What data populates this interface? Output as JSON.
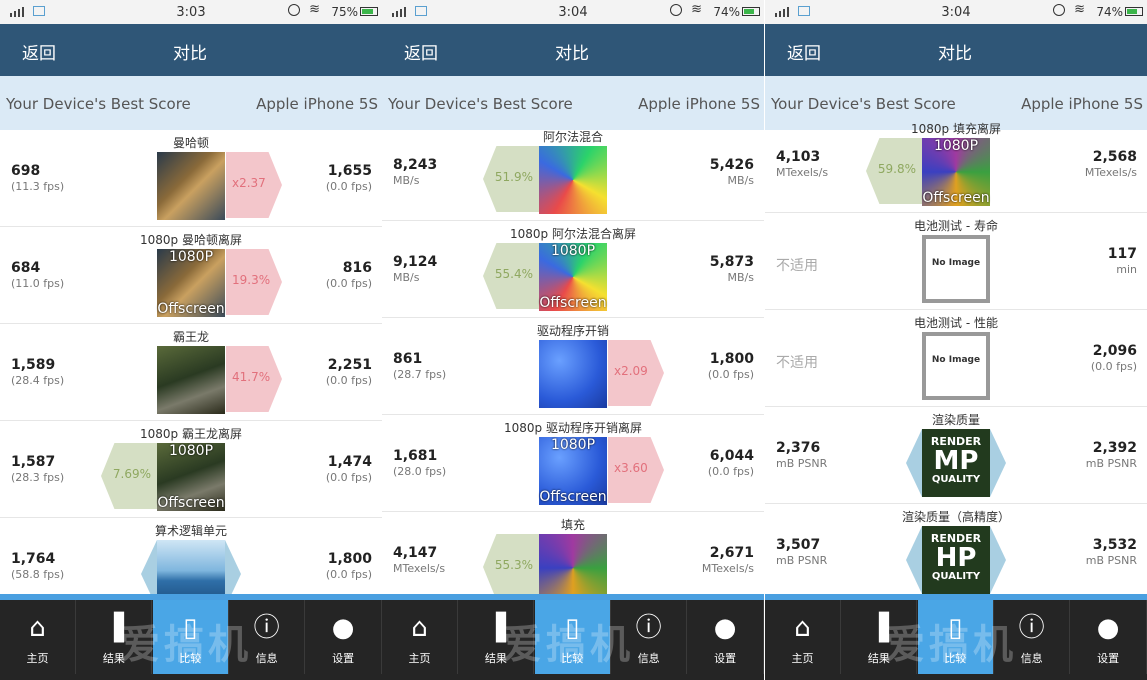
{
  "status_bars": [
    {
      "time": "3:03",
      "battery": "75%",
      "battery_level": 0.75
    },
    {
      "time": "3:04",
      "battery": "74%",
      "battery_level": 0.74
    },
    {
      "time": "3:04",
      "battery": "74%",
      "battery_level": 0.74
    }
  ],
  "nav": {
    "back_label": "返回",
    "title": "对比"
  },
  "compare_header": {
    "left_label": "Your Device's Best Score",
    "right_label": "Apple iPhone 5S"
  },
  "tabs": [
    {
      "label": "主页",
      "icon": "home-icon"
    },
    {
      "label": "结果",
      "icon": "bar-chart-icon"
    },
    {
      "label": "比较",
      "icon": "phone-icon"
    },
    {
      "label": "信息",
      "icon": "info-icon"
    },
    {
      "label": "设置",
      "icon": "user-icon"
    }
  ],
  "selected_tab": "比较",
  "watermark": "爱搞机",
  "screens": [
    {
      "rows": [
        {
          "name": "曼哈顿",
          "score": "698",
          "sub": "(11.3 fps)",
          "ref_score": "1,655",
          "ref_sub": "(0.0 fps)",
          "diff": "x2.37",
          "diff_side": "right",
          "thumb": "manhattan",
          "offscreen": false
        },
        {
          "name": "1080p 曼哈顿离屏",
          "score": "684",
          "sub": "(11.0 fps)",
          "ref_score": "816",
          "ref_sub": "(0.0 fps)",
          "diff": "19.3%",
          "diff_side": "right",
          "thumb": "manhattan",
          "offscreen": true,
          "ov_top": "1080P",
          "ov_bottom": "Offscreen"
        },
        {
          "name": "霸王龙",
          "score": "1,589",
          "sub": "(28.4 fps)",
          "ref_score": "2,251",
          "ref_sub": "(0.0 fps)",
          "diff": "41.7%",
          "diff_side": "right",
          "thumb": "trex",
          "offscreen": false
        },
        {
          "name": "1080p 霸王龙离屏",
          "score": "1,587",
          "sub": "(28.3 fps)",
          "ref_score": "1,474",
          "ref_sub": "(0.0 fps)",
          "diff": "7.69%",
          "diff_side": "left",
          "thumb": "trex",
          "offscreen": true,
          "ov_top": "1080P",
          "ov_bottom": "Offscreen"
        },
        {
          "name": "算术逻辑单元",
          "score": "1,764",
          "sub": "(58.8 fps)",
          "ref_score": "1,800",
          "ref_sub": "(0.0 fps)",
          "diff": "",
          "diff_side": "both",
          "thumb": "sea",
          "offscreen": false
        }
      ]
    },
    {
      "rows": [
        {
          "name": "阿尔法混合",
          "score": "8,243",
          "sub": "MB/s",
          "ref_score": "5,426",
          "ref_sub": "MB/s",
          "diff": "51.9%",
          "diff_side": "left",
          "thumb": "alpha",
          "offscreen": false
        },
        {
          "name": "1080p 阿尔法混合离屏",
          "score": "9,124",
          "sub": "MB/s",
          "ref_score": "5,873",
          "ref_sub": "MB/s",
          "diff": "55.4%",
          "diff_side": "left",
          "thumb": "alpha",
          "offscreen": true,
          "ov_top": "1080P",
          "ov_bottom": "Offscreen"
        },
        {
          "name": "驱动程序开销",
          "score": "861",
          "sub": "(28.7 fps)",
          "ref_score": "1,800",
          "ref_sub": "(0.0 fps)",
          "diff": "x2.09",
          "diff_side": "right",
          "thumb": "driver",
          "offscreen": false
        },
        {
          "name": "1080p 驱动程序开销离屏",
          "score": "1,681",
          "sub": "(28.0 fps)",
          "ref_score": "6,044",
          "ref_sub": "(0.0 fps)",
          "diff": "x3.60",
          "diff_side": "right",
          "thumb": "driver",
          "offscreen": true,
          "ov_top": "1080P",
          "ov_bottom": "Offscreen"
        },
        {
          "name": "填充",
          "score": "4,147",
          "sub": "MTexels/s",
          "ref_score": "2,671",
          "ref_sub": "MTexels/s",
          "diff": "55.3%",
          "diff_side": "left",
          "thumb": "fill",
          "offscreen": false
        }
      ]
    },
    {
      "rows": [
        {
          "name": "1080p 填充离屏",
          "score": "4,103",
          "sub": "MTexels/s",
          "ref_score": "2,568",
          "ref_sub": "MTexels/s",
          "diff": "59.8%",
          "diff_side": "left",
          "thumb": "fill",
          "offscreen": true,
          "ov_top": "1080P",
          "ov_bottom": "Offscreen"
        },
        {
          "name": "电池测试 - 寿命",
          "score": "",
          "na": "不适用",
          "sub": "",
          "ref_score": "117",
          "ref_sub": "min",
          "diff": "",
          "diff_side": "none",
          "thumb": "noimage",
          "noimg_text": "No Image"
        },
        {
          "name": "电池测试 - 性能",
          "score": "",
          "na": "不适用",
          "sub": "",
          "ref_score": "2,096",
          "ref_sub": "(0.0 fps)",
          "diff": "",
          "diff_side": "none",
          "thumb": "noimage",
          "noimg_text": "No Image"
        },
        {
          "name": "渲染质量",
          "score": "2,376",
          "sub": "mB PSNR",
          "ref_score": "2,392",
          "ref_sub": "mB PSNR",
          "diff": "",
          "diff_side": "both",
          "thumb": "render",
          "r1": "RENDER",
          "r2": "MP",
          "r3": "QUALITY"
        },
        {
          "name": "渲染质量（高精度）",
          "score": "3,507",
          "sub": "mB PSNR",
          "ref_score": "3,532",
          "ref_sub": "mB PSNR",
          "diff": "",
          "diff_side": "both",
          "thumb": "render",
          "r1": "RENDER",
          "r2": "HP",
          "r3": "QUALITY"
        }
      ]
    }
  ]
}
